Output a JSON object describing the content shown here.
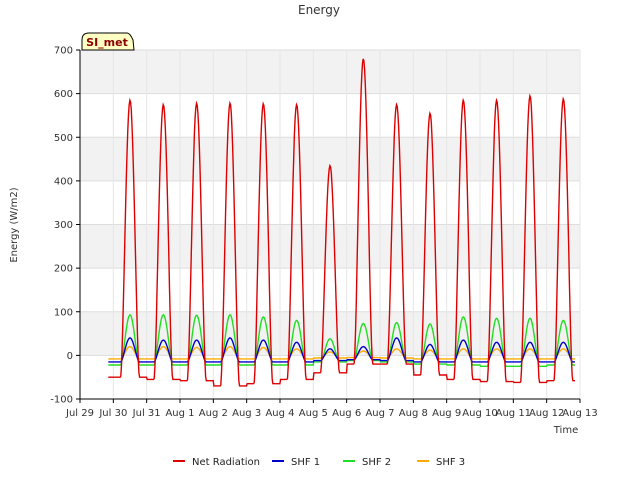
{
  "chart_data": {
    "type": "line",
    "title": "Energy",
    "xlabel": "Time",
    "ylabel": "Energy (W/m2)",
    "ylim": [
      -100,
      700
    ],
    "xlim": [
      0,
      15
    ],
    "yticks": [
      -100,
      0,
      100,
      200,
      300,
      400,
      500,
      600,
      700
    ],
    "xtick_labels": [
      "Jul 29",
      "Jul 30",
      "Jul 31",
      "Aug 1",
      "Aug 2",
      "Aug 3",
      "Aug 4",
      "Aug 5",
      "Aug 6",
      "Aug 7",
      "Aug 8",
      "Aug 9",
      "Aug 10",
      "Aug 11",
      "Aug 12",
      "Aug 13"
    ],
    "grid": true,
    "legend_placement": "bottom-center",
    "site_label": "SI_met",
    "series": [
      {
        "name": "Net Radiation",
        "color": "#dd0000",
        "daily_peak": [
          585,
          575,
          578,
          578,
          577,
          575,
          435,
          680,
          575,
          555,
          585,
          585,
          595,
          588
        ],
        "night_min": [
          -50,
          -55,
          -58,
          -70,
          -65,
          -55,
          -40,
          -20,
          -20,
          -45,
          -55,
          -60,
          -62,
          -58
        ]
      },
      {
        "name": "SHF 1",
        "color": "#0000cc",
        "daily_peak": [
          40,
          35,
          35,
          40,
          35,
          30,
          15,
          20,
          40,
          25,
          35,
          30,
          30,
          30
        ],
        "night_min": [
          -15,
          -15,
          -15,
          -15,
          -15,
          -15,
          -12,
          -10,
          -12,
          -15,
          -15,
          -15,
          -15,
          -15
        ]
      },
      {
        "name": "SHF 2",
        "color": "#22dd22",
        "daily_peak": [
          93,
          93,
          92,
          93,
          88,
          80,
          38,
          73,
          75,
          72,
          88,
          85,
          85,
          80
        ],
        "night_min": [
          -22,
          -22,
          -22,
          -22,
          -22,
          -22,
          -15,
          -12,
          -15,
          -20,
          -22,
          -25,
          -25,
          -22
        ]
      },
      {
        "name": "SHF 3",
        "color": "#ffaa00",
        "daily_peak": [
          20,
          20,
          18,
          20,
          18,
          15,
          8,
          10,
          15,
          12,
          15,
          15,
          15,
          15
        ],
        "night_min": [
          -8,
          -8,
          -8,
          -8,
          -8,
          -8,
          -6,
          -5,
          -6,
          -8,
          -8,
          -8,
          -8,
          -8
        ]
      }
    ]
  }
}
